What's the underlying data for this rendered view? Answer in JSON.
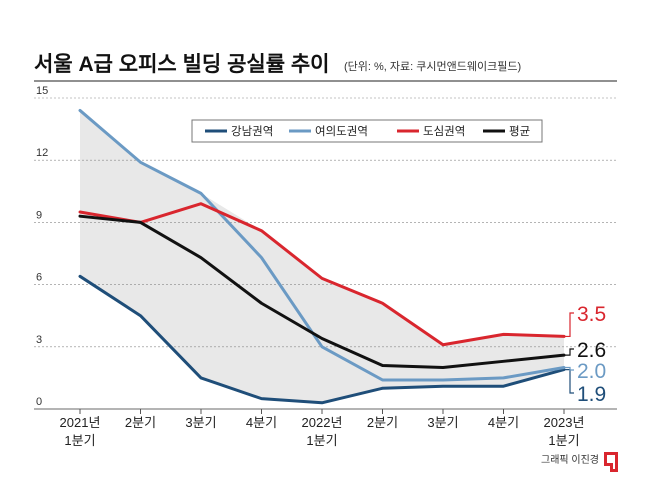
{
  "chart_data": {
    "type": "line",
    "title": "서울 A급 오피스 빌딩 공실률 추이",
    "subtitle": "(단위: %, 자료: 쿠시먼앤드웨이크필드)",
    "x": [
      "2021년\n1분기",
      "2분기",
      "3분기",
      "4분기",
      "2022년\n1분기",
      "2분기",
      "3분기",
      "4분기",
      "2023년\n1분기"
    ],
    "y_ticks": [
      0,
      3,
      6,
      9,
      12,
      15
    ],
    "ylim": [
      0,
      15
    ],
    "grid": true,
    "legend_position": "top",
    "series": [
      {
        "name": "강남권역",
        "color": "#1f4e79",
        "values": [
          6.4,
          4.5,
          1.5,
          0.5,
          0.3,
          1.0,
          1.1,
          1.1,
          1.9
        ],
        "end_label": "1.9",
        "end_label_color": "#1f4e79"
      },
      {
        "name": "여의도권역",
        "color": "#6b9ac4",
        "values": [
          14.4,
          11.9,
          10.4,
          7.3,
          3.0,
          1.4,
          1.4,
          1.5,
          2.0
        ],
        "end_label": "2.0",
        "end_label_color": "#6b9ac4"
      },
      {
        "name": "도심권역",
        "color": "#d9262e",
        "values": [
          9.5,
          9.0,
          9.9,
          8.6,
          6.3,
          5.1,
          3.1,
          3.6,
          3.5
        ],
        "end_label": "3.5",
        "end_label_color": "#d9262e"
      },
      {
        "name": "평균",
        "color": "#111111",
        "values": [
          9.3,
          9.0,
          7.3,
          5.1,
          3.4,
          2.1,
          2.0,
          2.3,
          2.6
        ],
        "end_label": "2.6",
        "end_label_color": "#111111"
      }
    ],
    "shade_color": "#e8e8e8"
  },
  "credit": "그래픽 이진경",
  "logo_color": "#d9262e"
}
